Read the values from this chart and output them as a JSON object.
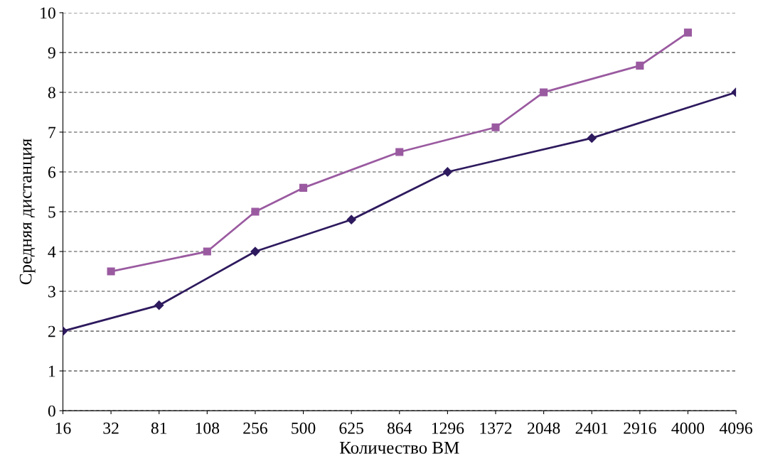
{
  "chart_data": {
    "type": "line",
    "xlabel": "Количество ВМ",
    "ylabel": "Средняя дистанция",
    "categories": [
      "16",
      "32",
      "81",
      "108",
      "256",
      "500",
      "625",
      "864",
      "1296",
      "1372",
      "2048",
      "2401",
      "2916",
      "4000",
      "4096"
    ],
    "series": [
      {
        "color": "#2e1a5e",
        "marker": "diamond",
        "values": [
          2,
          null,
          2.65,
          null,
          4,
          null,
          4.8,
          null,
          6,
          null,
          null,
          6.85,
          null,
          null,
          8
        ]
      },
      {
        "color": "#9a5aa0",
        "marker": "square",
        "values": [
          null,
          3.5,
          null,
          4,
          5,
          5.6,
          null,
          6.5,
          null,
          7.12,
          8,
          null,
          8.67,
          9.5,
          null
        ]
      }
    ],
    "ylim": [
      0,
      10
    ],
    "yticks": [
      0,
      1,
      2,
      3,
      4,
      5,
      6,
      7,
      8,
      9,
      10
    ],
    "grid": "y",
    "legend": false
  }
}
